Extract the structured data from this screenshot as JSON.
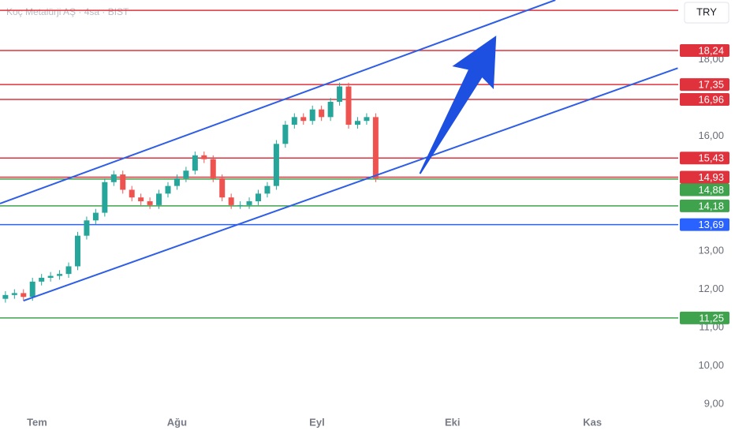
{
  "chart_data": {
    "type": "candlestick",
    "title": "Koç Metalürji AŞ · 4sa · BIST",
    "currency": "TRY",
    "xlim": [
      -8.2,
      142
    ],
    "ylim": [
      8.835,
      19.56
    ],
    "xticks": [
      {
        "value": 0,
        "label": "Tem"
      },
      {
        "value": 31,
        "label": "Ağu"
      },
      {
        "value": 62,
        "label": "Eyl"
      },
      {
        "value": 92,
        "label": "Eki"
      },
      {
        "value": 123,
        "label": "Kas"
      }
    ],
    "yticks": [
      {
        "value": 18,
        "label": "18,00"
      },
      {
        "value": 16,
        "label": "16,00"
      },
      {
        "value": 13,
        "label": "13,00"
      },
      {
        "value": 12,
        "label": "12,00"
      },
      {
        "value": 11,
        "label": "11,00"
      },
      {
        "value": 10,
        "label": "10,00"
      },
      {
        "value": 9,
        "label": "9,00"
      }
    ],
    "x": [
      -7,
      -5,
      -3,
      -1,
      1,
      3,
      5,
      7,
      9,
      11,
      13,
      15,
      17,
      19,
      21,
      23,
      25,
      27,
      29,
      31,
      33,
      35,
      37,
      39,
      41,
      43,
      45,
      47,
      49,
      51,
      53,
      55,
      57,
      59,
      61,
      63,
      65,
      67,
      69,
      71,
      73,
      75
    ],
    "open": [
      11.75,
      11.85,
      11.9,
      11.8,
      12.2,
      12.3,
      12.35,
      12.4,
      12.6,
      13.4,
      13.8,
      14.0,
      14.8,
      15.0,
      14.6,
      14.4,
      14.3,
      14.2,
      14.5,
      14.7,
      14.9,
      15.1,
      15.5,
      15.4,
      14.9,
      14.4,
      14.2,
      14.2,
      14.3,
      14.5,
      14.7,
      15.8,
      16.3,
      16.5,
      16.4,
      16.7,
      16.5,
      16.9,
      17.3,
      16.3,
      16.4,
      16.5
    ],
    "high": [
      11.95,
      12.0,
      12.0,
      12.3,
      12.4,
      12.45,
      12.5,
      12.7,
      13.5,
      13.9,
      14.1,
      14.9,
      15.1,
      15.1,
      14.7,
      14.5,
      14.4,
      14.6,
      14.8,
      15.0,
      15.2,
      15.6,
      15.6,
      15.5,
      15.0,
      14.5,
      14.3,
      14.4,
      14.6,
      14.8,
      15.9,
      16.4,
      16.6,
      16.6,
      16.8,
      16.8,
      17.0,
      17.4,
      17.4,
      16.5,
      16.6,
      16.6
    ],
    "low": [
      11.65,
      11.75,
      11.7,
      11.7,
      12.1,
      12.2,
      12.25,
      12.3,
      12.5,
      13.3,
      13.7,
      13.9,
      14.7,
      14.5,
      14.3,
      14.2,
      14.1,
      14.1,
      14.4,
      14.6,
      14.8,
      15.0,
      15.3,
      14.8,
      14.3,
      14.1,
      14.1,
      14.1,
      14.2,
      14.4,
      14.6,
      15.7,
      16.2,
      16.3,
      16.3,
      16.4,
      16.4,
      16.8,
      16.2,
      16.2,
      16.3,
      14.8
    ],
    "close": [
      11.85,
      11.9,
      11.8,
      12.2,
      12.3,
      12.35,
      12.4,
      12.6,
      13.4,
      13.8,
      14.0,
      14.8,
      15.0,
      14.6,
      14.4,
      14.3,
      14.2,
      14.5,
      14.7,
      14.9,
      15.1,
      15.5,
      15.4,
      14.9,
      14.4,
      14.2,
      14.2,
      14.3,
      14.5,
      14.7,
      15.8,
      16.3,
      16.5,
      16.4,
      16.7,
      16.5,
      16.9,
      17.3,
      16.3,
      16.4,
      16.5,
      14.9
    ],
    "up_color": "#26a69a",
    "down_color": "#ef5350",
    "levels": [
      {
        "value": 19.29,
        "color": "#e0323c"
      },
      {
        "value": 18.24,
        "label": "18,24",
        "color": "#e0323c"
      },
      {
        "value": 17.35,
        "label": "17,35",
        "color": "#e0323c"
      },
      {
        "value": 16.96,
        "label": "16,96",
        "color": "#e0323c"
      },
      {
        "value": 15.43,
        "label": "15,43",
        "color": "#e0323c"
      },
      {
        "value": 14.93,
        "label": "14,93",
        "color": "#e0323c"
      },
      {
        "value": 14.88,
        "label": "14,88",
        "color": "#3fa34d"
      },
      {
        "value": 14.18,
        "label": "14,18",
        "color": "#3fa34d"
      },
      {
        "value": 13.69,
        "label": "13,69",
        "color": "#2962ff"
      },
      {
        "value": 11.25,
        "label": "11,25",
        "color": "#3fa34d"
      }
    ],
    "channel": [
      {
        "x": [
          -8.2,
          114.8
        ],
        "y": [
          14.24,
          19.56
        ],
        "color": "#2f5ee6"
      },
      {
        "x": [
          -3.0,
          141.9
        ],
        "y": [
          11.7,
          17.78
        ],
        "color": "#2f5ee6"
      }
    ],
    "arrow": {
      "x": [
        84.8,
        101.7
      ],
      "y": [
        15.02,
        18.63
      ],
      "color": "#1d4fe0"
    }
  }
}
